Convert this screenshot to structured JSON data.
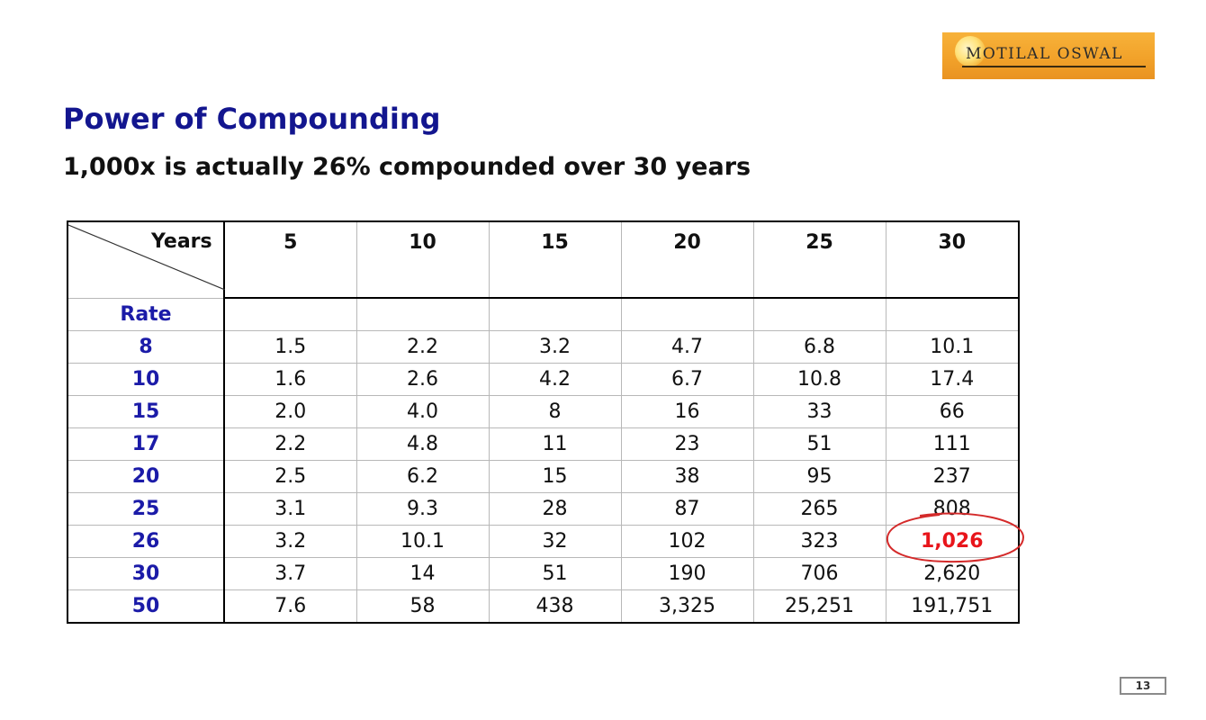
{
  "logo": {
    "text": "MOTILAL OSWAL"
  },
  "title": "Power of Compounding",
  "subtitle": "1,000x is actually 26% compounded over 30 years",
  "table": {
    "corner_top": "Years",
    "corner_bottom": "Rate",
    "columns": [
      "5",
      "10",
      "15",
      "20",
      "25",
      "30"
    ],
    "rows": [
      {
        "rate": "8",
        "values": [
          "1.5",
          "2.2",
          "3.2",
          "4.7",
          "6.8",
          "10.1"
        ]
      },
      {
        "rate": "10",
        "values": [
          "1.6",
          "2.6",
          "4.2",
          "6.7",
          "10.8",
          "17.4"
        ]
      },
      {
        "rate": "15",
        "values": [
          "2.0",
          "4.0",
          "8",
          "16",
          "33",
          "66"
        ]
      },
      {
        "rate": "17",
        "values": [
          "2.2",
          "4.8",
          "11",
          "23",
          "51",
          "111"
        ]
      },
      {
        "rate": "20",
        "values": [
          "2.5",
          "6.2",
          "15",
          "38",
          "95",
          "237"
        ]
      },
      {
        "rate": "25",
        "values": [
          "3.1",
          "9.3",
          "28",
          "87",
          "265",
          "808"
        ]
      },
      {
        "rate": "26",
        "values": [
          "3.2",
          "10.1",
          "32",
          "102",
          "323",
          "1,026"
        ]
      },
      {
        "rate": "30",
        "values": [
          "3.7",
          "14",
          "51",
          "190",
          "706",
          "2,620"
        ]
      },
      {
        "rate": "50",
        "values": [
          "7.6",
          "58",
          "438",
          "3,325",
          "25,251",
          "191,751"
        ]
      }
    ],
    "highlight_color": "#e8151b"
  },
  "page_number": "13"
}
